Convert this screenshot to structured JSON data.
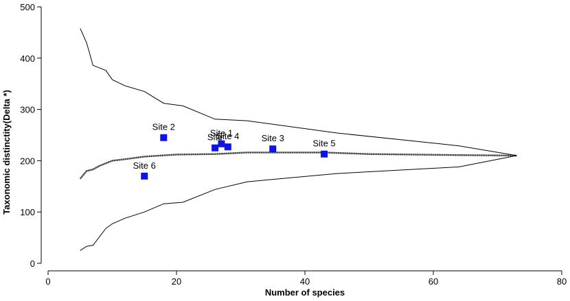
{
  "chart_data": {
    "type": "scatter",
    "title": "",
    "xlabel": "Number of species",
    "ylabel": "Taxonomic distinctity(Delta *)",
    "xlim": [
      0,
      80
    ],
    "ylim": [
      0,
      500
    ],
    "xticks": [
      0,
      20,
      40,
      60,
      80
    ],
    "yticks": [
      0,
      100,
      200,
      300,
      400,
      500
    ],
    "grid": false,
    "colors": {
      "points": "#0a14e6",
      "lines": "#000000"
    },
    "funnel": {
      "upper": {
        "x": [
          5,
          6,
          7,
          9,
          10,
          12,
          15,
          18,
          21,
          26,
          31,
          45,
          64,
          73
        ],
        "y": [
          458,
          430,
          386,
          376,
          358,
          346,
          335,
          312,
          307,
          281,
          278,
          254,
          229,
          210
        ]
      },
      "mean": {
        "x": [
          5,
          6,
          7,
          8,
          10,
          12,
          15,
          20,
          26,
          31,
          43,
          50,
          64,
          73
        ],
        "y": [
          165,
          180,
          183,
          190,
          200,
          203,
          208,
          212,
          213,
          216,
          216,
          213,
          211,
          210
        ]
      },
      "lower": {
        "x": [
          5,
          6,
          7,
          9,
          10,
          12,
          15,
          18,
          21,
          26,
          31,
          45,
          64,
          73
        ],
        "y": [
          25,
          33,
          35,
          68,
          77,
          88,
          100,
          116,
          119,
          144,
          159,
          175,
          188,
          210
        ]
      }
    },
    "points": [
      {
        "name": "Site 1",
        "x": 27,
        "y": 233
      },
      {
        "name": "Site 2",
        "x": 18,
        "y": 245
      },
      {
        "name": "Site 3",
        "x": 35,
        "y": 223
      },
      {
        "name": "Site 4",
        "x": 28,
        "y": 227
      },
      {
        "name": "Site 5",
        "x": 43,
        "y": 213
      },
      {
        "name": "Site 6",
        "x": 15,
        "y": 170
      },
      {
        "name": "Site",
        "x": 26,
        "y": 225
      }
    ]
  }
}
